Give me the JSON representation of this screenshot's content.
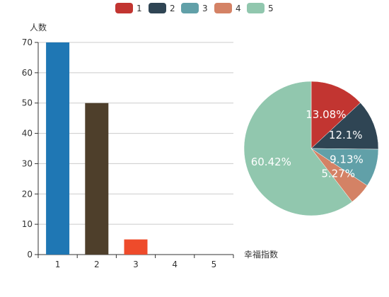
{
  "chart_data": [
    {
      "type": "bar",
      "categories": [
        "1",
        "2",
        "3",
        "4",
        "5"
      ],
      "values": [
        70,
        50,
        5,
        0,
        0
      ],
      "bar_colors": [
        "#1f77b4",
        "#4e3f2b",
        "#ee4b2b",
        "#cccccc",
        "#cccccc"
      ],
      "xlabel": "幸福指数",
      "ylabel": "人数",
      "ylim": [
        0,
        70
      ],
      "yticks": [
        0,
        10,
        20,
        30,
        40,
        50,
        60,
        70
      ],
      "grid": true
    },
    {
      "type": "pie",
      "labels": [
        "1",
        "2",
        "3",
        "4",
        "5"
      ],
      "values": [
        13.08,
        12.1,
        9.13,
        5.27,
        60.42
      ],
      "value_labels": [
        "13.08%",
        "12.1%",
        "9.13%",
        "5.27%",
        "60.42%"
      ],
      "colors": [
        "#c23531",
        "#2f4554",
        "#61a0a8",
        "#d48265",
        "#91c7ae"
      ]
    }
  ],
  "legend": {
    "position": "top-center",
    "items": [
      {
        "label": "1",
        "color": "#c23531"
      },
      {
        "label": "2",
        "color": "#2f4554"
      },
      {
        "label": "3",
        "color": "#61a0a8"
      },
      {
        "label": "4",
        "color": "#d48265"
      },
      {
        "label": "5",
        "color": "#91c7ae"
      }
    ]
  }
}
